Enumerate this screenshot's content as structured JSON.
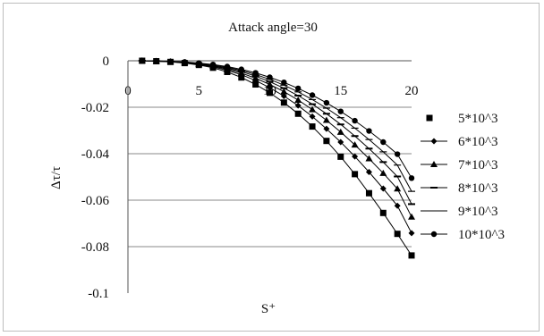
{
  "chart_data": {
    "type": "line",
    "title": "Attack angle=30",
    "xlabel": "S⁺",
    "ylabel": "Δτ/τ",
    "xlim": [
      0,
      20
    ],
    "ylim": [
      -0.1,
      0
    ],
    "x_ticks": [
      "0",
      "5",
      "10",
      "15",
      "20"
    ],
    "y_ticks": [
      "0",
      "-0.02",
      "-0.04",
      "-0.06",
      "-0.08",
      "-0.1"
    ],
    "grid": "horizontal",
    "legend_position": "right",
    "x": [
      1,
      2,
      3,
      4,
      5,
      6,
      7,
      8,
      9,
      10,
      11,
      12,
      13,
      14,
      15,
      16,
      17,
      18,
      19,
      20
    ],
    "series": [
      {
        "name": "5*10^3",
        "marker": "square",
        "values": [
          0,
          -0.0002,
          -0.0005,
          -0.001,
          -0.0018,
          -0.003,
          -0.0048,
          -0.0072,
          -0.0102,
          -0.0138,
          -0.018,
          -0.0228,
          -0.0283,
          -0.0345,
          -0.0413,
          -0.0488,
          -0.057,
          -0.0655,
          -0.0745,
          -0.0838
        ]
      },
      {
        "name": "6*10^3",
        "marker": "diamond",
        "values": [
          0,
          -0.0002,
          -0.0004,
          -0.0009,
          -0.0016,
          -0.0026,
          -0.0041,
          -0.006,
          -0.0085,
          -0.0116,
          -0.0152,
          -0.0193,
          -0.024,
          -0.0293,
          -0.035,
          -0.0412,
          -0.0479,
          -0.055,
          -0.0624,
          -0.0742
        ]
      },
      {
        "name": "7*10^3",
        "marker": "triangle",
        "values": [
          0,
          -0.0002,
          -0.0004,
          -0.0008,
          -0.0014,
          -0.0023,
          -0.0036,
          -0.0053,
          -0.0075,
          -0.0102,
          -0.0133,
          -0.0169,
          -0.021,
          -0.0256,
          -0.0307,
          -0.0362,
          -0.0421,
          -0.0484,
          -0.0551,
          -0.0672
        ]
      },
      {
        "name": "8*10^3",
        "marker": "dash",
        "values": [
          0,
          -0.0001,
          -0.0003,
          -0.0007,
          -0.0013,
          -0.0021,
          -0.0032,
          -0.0047,
          -0.0066,
          -0.009,
          -0.0118,
          -0.015,
          -0.0187,
          -0.0228,
          -0.0274,
          -0.0324,
          -0.0378,
          -0.0436,
          -0.0498,
          -0.0617
        ]
      },
      {
        "name": "9*10^3",
        "marker": "none",
        "values": [
          0,
          -0.0001,
          -0.0003,
          -0.0006,
          -0.0011,
          -0.0018,
          -0.0028,
          -0.0042,
          -0.0059,
          -0.008,
          -0.0105,
          -0.0134,
          -0.0167,
          -0.0204,
          -0.0245,
          -0.029,
          -0.0339,
          -0.0392,
          -0.0449,
          -0.0562
        ]
      },
      {
        "name": "10*10^3",
        "marker": "circle",
        "values": [
          0,
          -0.0001,
          -0.0003,
          -0.0005,
          -0.001,
          -0.0016,
          -0.0025,
          -0.0037,
          -0.0052,
          -0.0071,
          -0.0093,
          -0.0119,
          -0.0148,
          -0.0181,
          -0.0218,
          -0.0258,
          -0.0302,
          -0.035,
          -0.0402,
          -0.0505
        ]
      }
    ]
  }
}
